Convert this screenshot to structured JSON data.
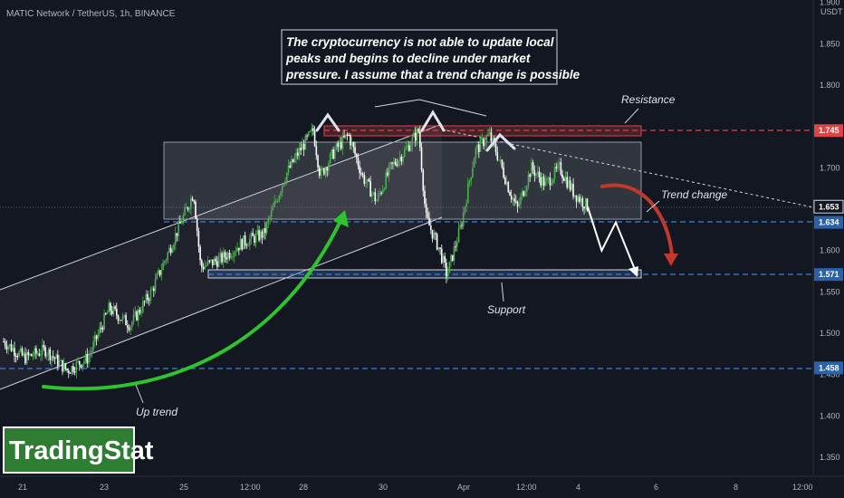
{
  "header": {
    "symbol": "MATIC Network / TetherUS, 1h, BINANCE"
  },
  "logo": {
    "text": "TradingStat"
  },
  "note": {
    "lines": [
      "The cryptocurrency is not able to update local",
      "peaks and begins to decline under market",
      "pressure. I assume that a trend change is possible"
    ]
  },
  "annotations": {
    "resistance": "Resistance",
    "support": "Support",
    "trend_change": "Trend change",
    "up_trend": "Up trend"
  },
  "colors": {
    "background": "#131722",
    "up_candle": "#4caf50",
    "down_candle": "#ffffff",
    "green_arrow": "#2fc32f",
    "red_arrow": "#c0392b",
    "resistance": "#e04343",
    "support": "#3f7fd9",
    "logo_bg": "#2e7d32"
  },
  "chart_data": {
    "type": "candlestick",
    "currency": "USDT",
    "ylim": [
      1.33,
      1.91
    ],
    "y_ticks": [
      "1.900",
      "1.850",
      "1.800",
      "1.700",
      "1.600",
      "1.550",
      "1.500",
      "1.450",
      "1.400",
      "1.350"
    ],
    "x_ticks": [
      "21",
      "23",
      "25",
      "12:00",
      "28",
      "30",
      "Apr",
      "12:00",
      "4",
      "6",
      "8",
      "12:00"
    ],
    "price_labels": [
      {
        "value": "1.745",
        "kind": "resistance"
      },
      {
        "value": "1.653",
        "kind": "current"
      },
      {
        "value": "1.634",
        "kind": "support-line"
      },
      {
        "value": "1.571",
        "kind": "support"
      },
      {
        "value": "1.458",
        "kind": "support-line"
      }
    ],
    "levels": {
      "resistance": 1.745,
      "support": 1.571,
      "lower": 1.458,
      "mid": 1.634,
      "last": 1.653
    },
    "path": [
      {
        "x": 0,
        "y": 1.49
      },
      {
        "x": 3,
        "y": 1.47
      },
      {
        "x": 6,
        "y": 1.48
      },
      {
        "x": 9,
        "y": 1.455
      },
      {
        "x": 12,
        "y": 1.47
      },
      {
        "x": 15,
        "y": 1.53
      },
      {
        "x": 18,
        "y": 1.51
      },
      {
        "x": 21,
        "y": 1.55
      },
      {
        "x": 23,
        "y": 1.59
      },
      {
        "x": 25,
        "y": 1.63
      },
      {
        "x": 27,
        "y": 1.67
      },
      {
        "x": 28,
        "y": 1.58
      },
      {
        "x": 31,
        "y": 1.59
      },
      {
        "x": 34,
        "y": 1.61
      },
      {
        "x": 37,
        "y": 1.62
      },
      {
        "x": 40,
        "y": 1.69
      },
      {
        "x": 42,
        "y": 1.72
      },
      {
        "x": 44,
        "y": 1.745
      },
      {
        "x": 45,
        "y": 1.69
      },
      {
        "x": 47,
        "y": 1.72
      },
      {
        "x": 49,
        "y": 1.74
      },
      {
        "x": 51,
        "y": 1.69
      },
      {
        "x": 53,
        "y": 1.66
      },
      {
        "x": 55,
        "y": 1.7
      },
      {
        "x": 57,
        "y": 1.72
      },
      {
        "x": 59,
        "y": 1.745
      },
      {
        "x": 60,
        "y": 1.64
      },
      {
        "x": 62,
        "y": 1.6
      },
      {
        "x": 63,
        "y": 1.57
      },
      {
        "x": 65,
        "y": 1.63
      },
      {
        "x": 67,
        "y": 1.72
      },
      {
        "x": 69,
        "y": 1.74
      },
      {
        "x": 70,
        "y": 1.72
      },
      {
        "x": 72,
        "y": 1.67
      },
      {
        "x": 73,
        "y": 1.65
      },
      {
        "x": 75,
        "y": 1.7
      },
      {
        "x": 77,
        "y": 1.68
      },
      {
        "x": 79,
        "y": 1.7
      },
      {
        "x": 81,
        "y": 1.67
      },
      {
        "x": 83,
        "y": 1.653
      }
    ],
    "projection": [
      {
        "x": 83,
        "y": 1.653
      },
      {
        "x": 85,
        "y": 1.6
      },
      {
        "x": 87,
        "y": 1.634
      },
      {
        "x": 90,
        "y": 1.571
      }
    ]
  }
}
